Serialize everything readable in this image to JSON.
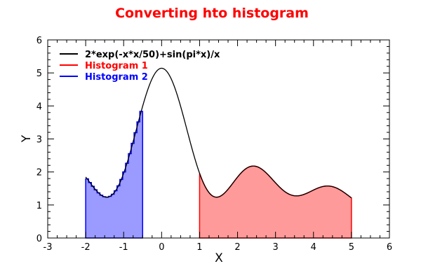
{
  "chart_data": {
    "type": "line",
    "title": "Converting hto histogram",
    "title_color": "#ff0000",
    "xlabel": "X",
    "ylabel": "Y",
    "xlim": [
      -3,
      6
    ],
    "ylim": [
      0,
      6
    ],
    "x_ticks": [
      "-3",
      "-2",
      "-1",
      "0",
      "1",
      "2",
      "3",
      "4",
      "5",
      "6"
    ],
    "y_ticks": [
      "0",
      "1",
      "2",
      "3",
      "4",
      "5",
      "6"
    ],
    "grid": false,
    "legend_position": "top-left",
    "series": [
      {
        "name": "2*exp(-x*x/50)+sin(pi*x)/x",
        "kind": "function",
        "color": "#000000",
        "domain": [
          -2,
          5
        ]
      },
      {
        "name": "Histogram 1",
        "kind": "filled_area",
        "color": "#ff0000",
        "fill": "#ff9a9a",
        "range": [
          1,
          5
        ]
      },
      {
        "name": "Histogram 2",
        "kind": "histogram",
        "color": "#0000ff",
        "fill": "#9a9aff",
        "range": [
          -2,
          -0.5
        ],
        "bins": 20
      }
    ]
  }
}
